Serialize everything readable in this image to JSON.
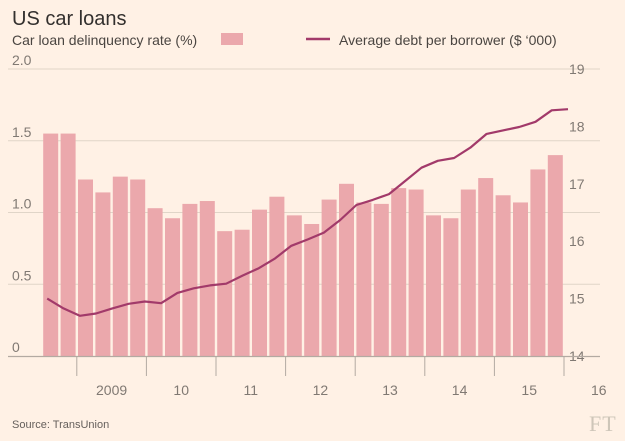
{
  "chart_data": {
    "type": "bar+line",
    "title": "US car loans",
    "legend": [
      {
        "name": "Car loan delinquency rate (%)",
        "kind": "bar"
      },
      {
        "name": "Average debt per borrower ($ ‘000)",
        "kind": "line"
      }
    ],
    "legend_placement": "top",
    "grid": "horizontal",
    "x_tick_labels": [
      "2009",
      "10",
      "11",
      "12",
      "13",
      "14",
      "15",
      "16"
    ],
    "left_axis": {
      "ylim": [
        0,
        2.0
      ],
      "ticks": [
        "0",
        "0.5",
        "1.0",
        "1.5",
        "2.0"
      ]
    },
    "right_axis": {
      "ylim": [
        14,
        19
      ],
      "ticks": [
        "14",
        "15",
        "16",
        "17",
        "18",
        "19"
      ]
    },
    "series": [
      {
        "name": "Car loan delinquency rate (%)",
        "axis": "left",
        "kind": "bar",
        "values": [
          1.55,
          1.55,
          1.23,
          1.14,
          1.25,
          1.23,
          1.03,
          0.96,
          1.06,
          1.08,
          0.87,
          0.88,
          1.02,
          1.11,
          0.98,
          0.92,
          1.09,
          1.2,
          1.07,
          1.06,
          1.17,
          1.16,
          0.98,
          0.96,
          1.16,
          1.24,
          1.12,
          1.07,
          1.3,
          1.4
        ]
      },
      {
        "name": "Average debt per borrower ($ ‘000)",
        "axis": "right",
        "kind": "line",
        "values": [
          15.0,
          14.83,
          14.7,
          14.74,
          14.83,
          14.91,
          14.95,
          14.92,
          15.1,
          15.18,
          15.23,
          15.26,
          15.4,
          15.53,
          15.7,
          15.92,
          16.03,
          16.15,
          16.37,
          16.63,
          16.72,
          16.82,
          17.05,
          17.28,
          17.4,
          17.45,
          17.63,
          17.87,
          17.93,
          17.99,
          18.08,
          18.28,
          18.3
        ]
      }
    ]
  },
  "source": "Source: TransUnion",
  "logo": "FT",
  "colors": {
    "background": "#fff1e5",
    "bar": "#eba8ac",
    "line": "#a23a6a",
    "grid": "#e0d5c8",
    "axis": "#b3aaa2"
  }
}
